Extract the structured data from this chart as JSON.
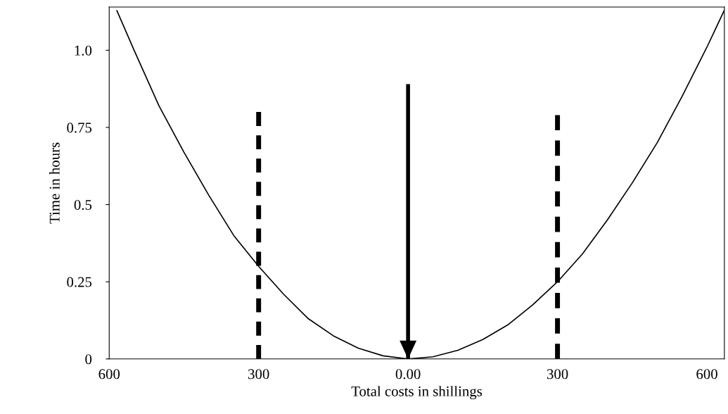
{
  "chart_data": {
    "type": "line",
    "xlabel": "Total costs in shillings",
    "ylabel": "Time in hours",
    "xlim": [
      -600,
      635
    ],
    "ylim": [
      0,
      1.14
    ],
    "xticks": [
      {
        "value": -600,
        "label": "600"
      },
      {
        "value": -300,
        "label": "300"
      },
      {
        "value": 0,
        "label": "0.00"
      },
      {
        "value": 300,
        "label": "300"
      },
      {
        "value": 600,
        "label": "600"
      }
    ],
    "yticks": [
      0,
      0.25,
      0.5,
      0.75,
      {
        "value": 1.0,
        "label": "1.0"
      }
    ],
    "series": [
      {
        "color": "#000000",
        "line_style": "solid",
        "x": [
          -585,
          -550,
          -500,
          -450,
          -400,
          -350,
          -300,
          -250,
          -200,
          -150,
          -100,
          -50,
          0,
          50,
          100,
          150,
          200,
          250,
          300,
          350,
          400,
          450,
          500,
          550,
          600,
          635
        ],
        "values": [
          1.13,
          1.0,
          0.82,
          0.67,
          0.53,
          0.4,
          0.3,
          0.21,
          0.13,
          0.075,
          0.035,
          0.01,
          0,
          0.007,
          0.028,
          0.063,
          0.11,
          0.175,
          0.25,
          0.34,
          0.45,
          0.57,
          0.7,
          0.85,
          1.01,
          1.13
        ]
      },
      {
        "color": "#000000",
        "line_style": "dashed",
        "x": [
          -300,
          -300
        ],
        "values": [
          0,
          0.8
        ]
      },
      {
        "color": "#000000",
        "line_style": "dashed",
        "x": [
          300,
          300
        ],
        "values": [
          0,
          0.79
        ]
      },
      {
        "color": "#000000",
        "line_style": "solid",
        "x": [
          0,
          0
        ],
        "values": [
          0.89,
          0
        ]
      }
    ]
  }
}
